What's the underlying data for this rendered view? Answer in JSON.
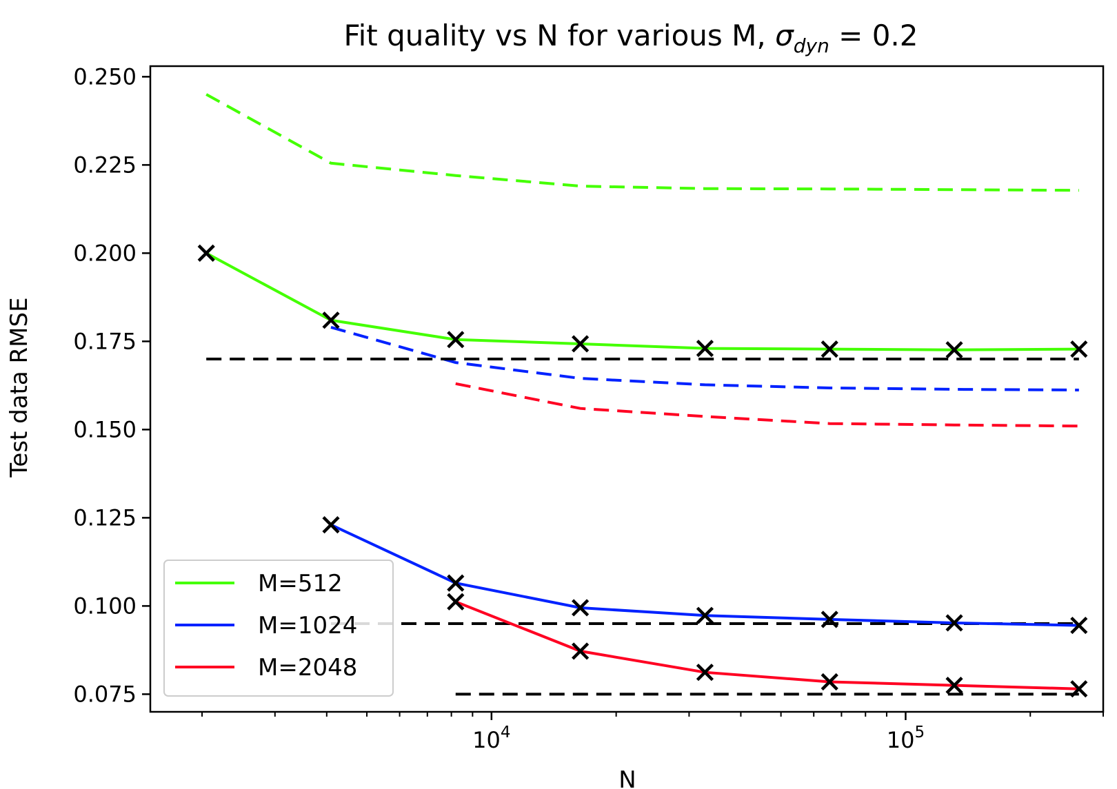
{
  "chart_data": {
    "type": "line",
    "title": {
      "prefix": "Fit quality vs N for various M, ",
      "symbol": "σ",
      "subscript": "dyn",
      "suffix": " = 0.2"
    },
    "xlabel": "N",
    "ylabel": "Test data RMSE",
    "x_scale": "log",
    "xlim": [
      1500,
      300000
    ],
    "ylim": [
      0.07,
      0.253
    ],
    "y_ticks": [
      0.075,
      0.1,
      0.125,
      0.15,
      0.175,
      0.2,
      0.225,
      0.25
    ],
    "y_tick_labels": [
      "0.075",
      "0.100",
      "0.125",
      "0.150",
      "0.175",
      "0.200",
      "0.225",
      "0.250"
    ],
    "x_major_ticks": [
      {
        "value": 10000,
        "base": "10",
        "exp": "4"
      },
      {
        "value": 100000,
        "base": "10",
        "exp": "5"
      }
    ],
    "x_minor_ticks": [
      2000,
      3000,
      4000,
      5000,
      6000,
      7000,
      8000,
      9000,
      20000,
      30000,
      40000,
      50000,
      60000,
      70000,
      80000,
      90000,
      200000,
      300000
    ],
    "grid": false,
    "legend_position": "lower-left",
    "series": [
      {
        "name": "M=512",
        "color": "#44ff00",
        "x": [
          2048,
          4096,
          8192,
          16384,
          32768,
          65536,
          131072,
          262144
        ],
        "values": [
          0.2,
          0.181,
          0.1755,
          0.1743,
          0.173,
          0.1728,
          0.1726,
          0.1728
        ],
        "markers": true
      },
      {
        "name": "M=1024",
        "color": "#0022ff",
        "x": [
          4096,
          8192,
          16384,
          32768,
          65536,
          131072,
          262144
        ],
        "values": [
          0.123,
          0.1065,
          0.0995,
          0.0973,
          0.0962,
          0.0952,
          0.0945
        ],
        "markers": true
      },
      {
        "name": "M=2048",
        "color": "#ff0022",
        "x": [
          8192,
          16384,
          32768,
          65536,
          131072,
          262144
        ],
        "values": [
          0.1012,
          0.0872,
          0.0812,
          0.0785,
          0.0775,
          0.0765
        ],
        "markers": true
      }
    ],
    "dashed_lines": [
      {
        "color": "#44ff00",
        "x": [
          2048,
          4096,
          8192,
          16384,
          32768,
          65536,
          131072,
          262144
        ],
        "values": [
          0.245,
          0.2255,
          0.222,
          0.219,
          0.2183,
          0.2182,
          0.218,
          0.2178
        ]
      },
      {
        "color": "#0022ff",
        "x": [
          4096,
          8192,
          16384,
          32768,
          65536,
          131072,
          262144
        ],
        "values": [
          0.179,
          0.169,
          0.1645,
          0.1627,
          0.1618,
          0.1614,
          0.1612
        ]
      },
      {
        "color": "#ff0022",
        "x": [
          8192,
          16384,
          32768,
          65536,
          131072,
          262144
        ],
        "values": [
          0.163,
          0.156,
          0.1537,
          0.1517,
          0.1513,
          0.151
        ]
      },
      {
        "color": "#000000",
        "x": [
          2048,
          262144
        ],
        "values": [
          0.17,
          0.17
        ]
      },
      {
        "color": "#000000",
        "x": [
          4096,
          262144
        ],
        "values": [
          0.095,
          0.095
        ]
      },
      {
        "color": "#000000",
        "x": [
          8192,
          262144
        ],
        "values": [
          0.075,
          0.075
        ]
      }
    ]
  }
}
